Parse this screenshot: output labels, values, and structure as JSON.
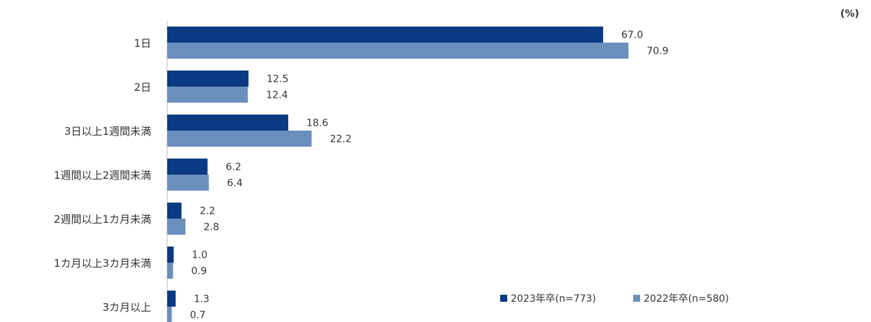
{
  "chart_data": {
    "type": "bar",
    "orientation": "horizontal",
    "unit_label": "(%)",
    "categories": [
      "1日",
      "2日",
      "3日以上1週間未満",
      "1週間以上2週間未満",
      "2週間以上1カ月未満",
      "1カ月以上3カ月未満",
      "3カ月以上"
    ],
    "series": [
      {
        "name": "2023年卒(n=773)",
        "values": [
          67.0,
          12.5,
          18.6,
          6.2,
          2.2,
          1.0,
          1.3
        ],
        "color": "#0a3a84"
      },
      {
        "name": "2022年卒(n=580)",
        "values": [
          70.9,
          12.4,
          22.2,
          6.4,
          2.8,
          0.9,
          0.7
        ],
        "color": "#6b8fbd"
      }
    ],
    "xlim": [
      0,
      100
    ],
    "legend_position": "bottom-right",
    "grid": false
  }
}
